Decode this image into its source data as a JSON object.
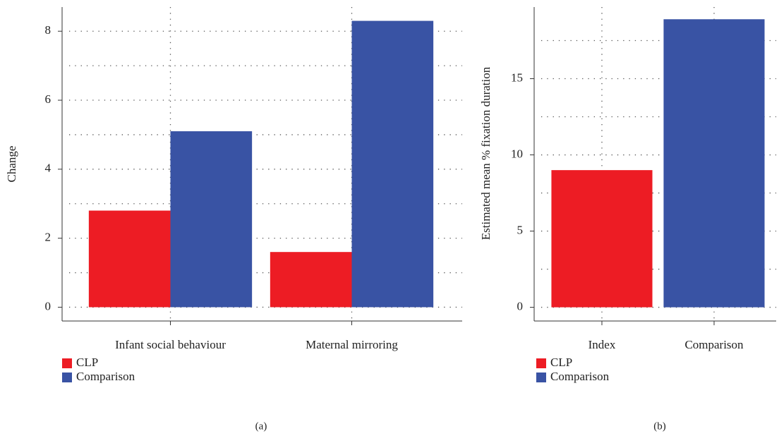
{
  "chart_data": [
    {
      "type": "bar",
      "y_label": "Change",
      "caption": "(a)",
      "categories": [
        "Infant social behaviour",
        "Maternal mirroring"
      ],
      "series": [
        {
          "name": "CLP",
          "color": "#ed1c24",
          "values": [
            2.8,
            1.6
          ]
        },
        {
          "name": "Comparison",
          "color": "#3953a4",
          "values": [
            5.1,
            8.3
          ]
        }
      ],
      "ylim": [
        -0.4,
        8.7
      ],
      "yticks": [
        0,
        2,
        4,
        6,
        8
      ],
      "minor_yticks": [
        1,
        3,
        5,
        7
      ],
      "grid": true
    },
    {
      "type": "bar",
      "y_label": "Estimated mean % fixation duration",
      "caption": "(b)",
      "categories": [
        "Index",
        "Comparison"
      ],
      "series": [
        {
          "name": "CLP",
          "color": "#ed1c24",
          "values": [
            9.0,
            null
          ]
        },
        {
          "name": "Comparison",
          "color": "#3953a4",
          "values": [
            null,
            18.9
          ]
        }
      ],
      "ylim": [
        -0.9,
        19.7
      ],
      "yticks": [
        0,
        5,
        10,
        15
      ],
      "minor_yticks": [
        2.5,
        7.5,
        12.5,
        17.5
      ],
      "grid": true
    }
  ]
}
